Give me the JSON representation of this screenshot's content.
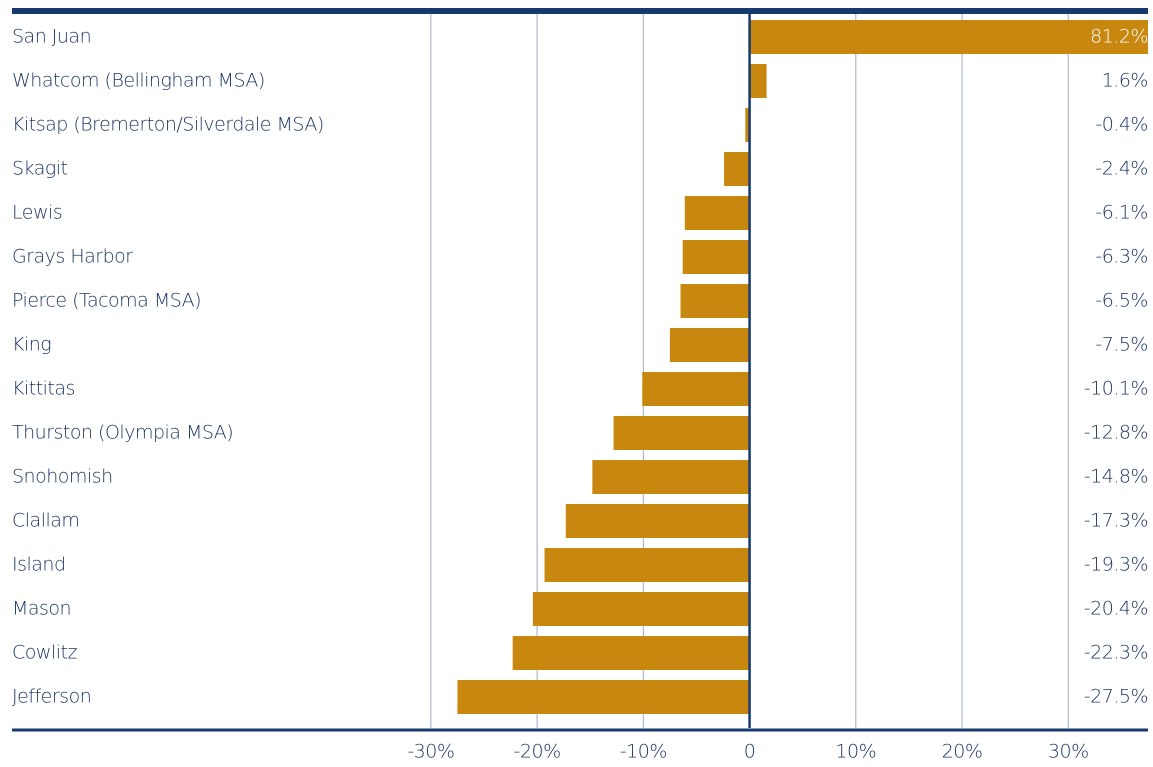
{
  "chart_data": {
    "type": "bar",
    "orientation": "horizontal",
    "categories": [
      "San Juan",
      "Whatcom (Bellingham MSA)",
      "Kitsap (Bremerton/Silverdale MSA)",
      "Skagit",
      "Lewis",
      "Grays Harbor",
      "Pierce (Tacoma MSA)",
      "King",
      "Kittitas",
      "Thurston (Olympia MSA)",
      "Snohomish",
      "Clallam",
      "Island",
      "Mason",
      "Cowlitz",
      "Jefferson"
    ],
    "values": [
      81.2,
      1.6,
      -0.4,
      -2.4,
      -6.1,
      -6.3,
      -6.5,
      -7.5,
      -10.1,
      -12.8,
      -14.8,
      -17.3,
      -19.3,
      -20.4,
      -22.3,
      -27.5
    ],
    "value_labels": [
      "81.2%",
      "1.6%",
      "-0.4%",
      "-2.4%",
      "-6.1%",
      "-6.3%",
      "-6.5%",
      "-7.5%",
      "-10.1%",
      "-12.8%",
      "-14.8%",
      "-17.3%",
      "-19.3%",
      "-20.4%",
      "-22.3%",
      "-27.5%"
    ],
    "color": "#c8870e",
    "xlim": [
      -33,
      36
    ],
    "xticks": [
      {
        "value": -30,
        "label": "-30%"
      },
      {
        "value": -20,
        "label": "-20%"
      },
      {
        "value": -10,
        "label": "-10%"
      },
      0,
      {
        "value": 10,
        "label": "10%"
      },
      {
        "value": 20,
        "label": "20%"
      },
      {
        "value": 30,
        "label": "30%"
      }
    ],
    "grid": true
  }
}
